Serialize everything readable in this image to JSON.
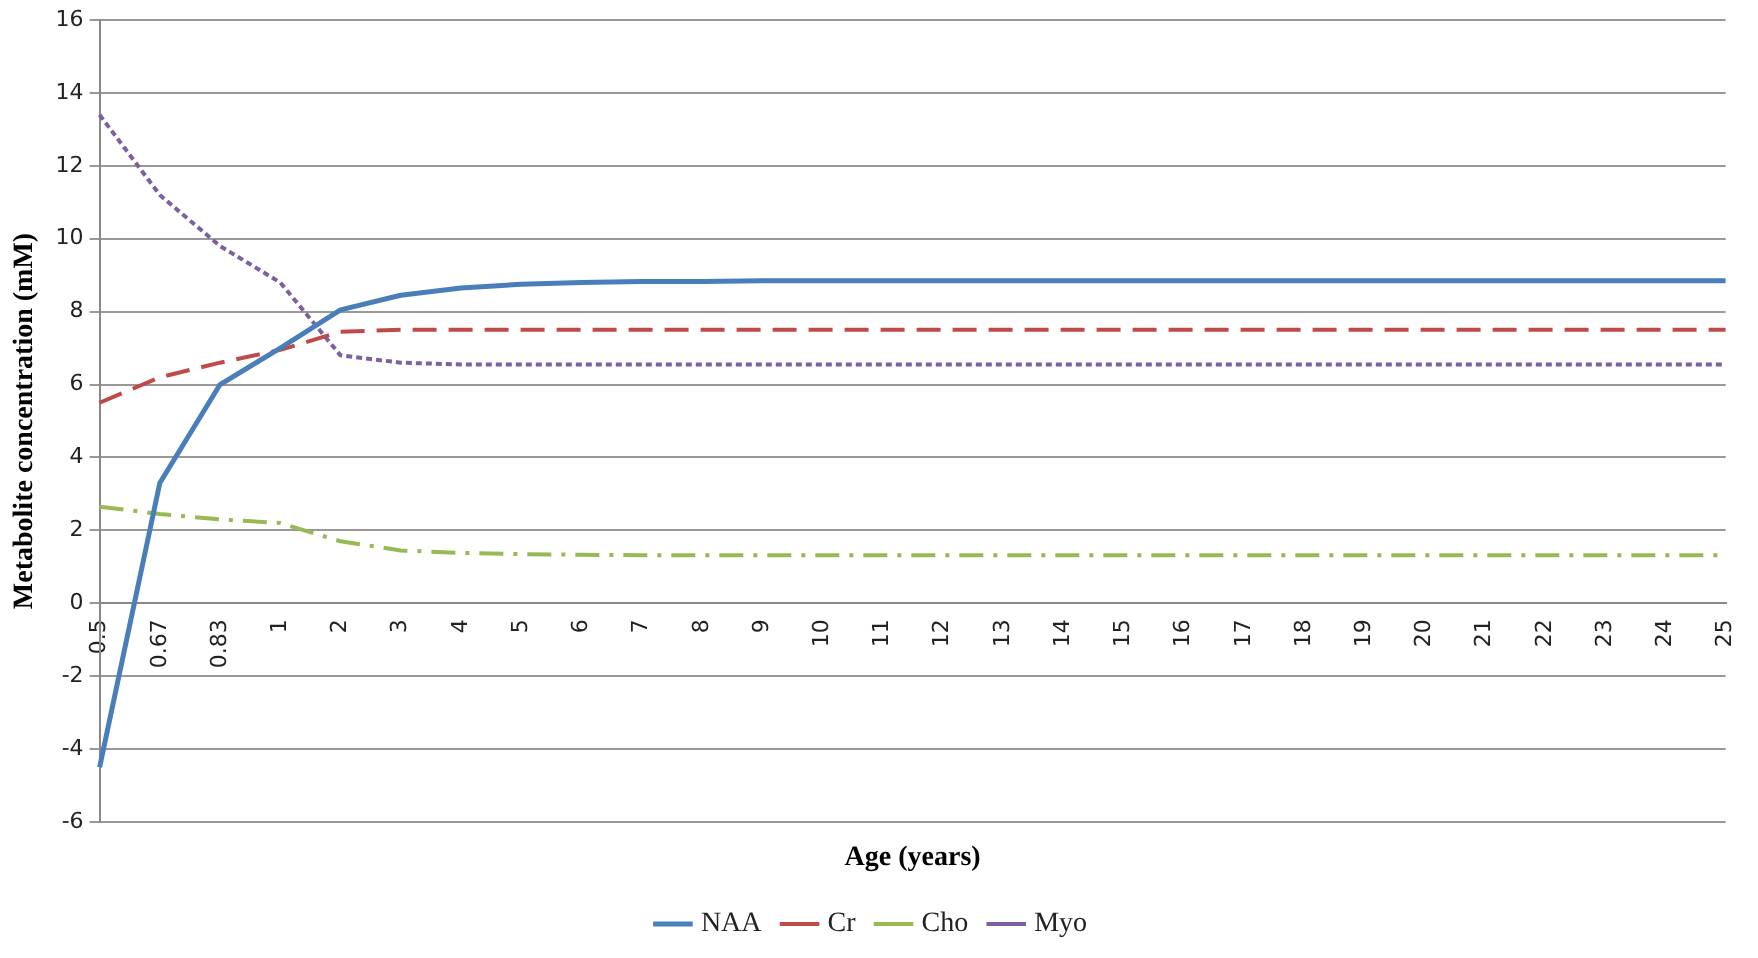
{
  "chart_data": {
    "type": "line",
    "xlabel": "Age (years)",
    "ylabel": "Metabolite concentration (mM)",
    "categories": [
      "0.5",
      "0.67",
      "0.83",
      "1",
      "2",
      "3",
      "4",
      "5",
      "6",
      "7",
      "8",
      "9",
      "10",
      "11",
      "12",
      "13",
      "14",
      "15",
      "16",
      "17",
      "18",
      "19",
      "20",
      "21",
      "22",
      "23",
      "24",
      "25"
    ],
    "series": [
      {
        "name": "NAA",
        "color": "#4a7ebb",
        "line_style": "solid",
        "values": [
          -4.5,
          3.3,
          6.0,
          7.0,
          8.05,
          8.45,
          8.65,
          8.75,
          8.8,
          8.83,
          8.83,
          8.85,
          8.85,
          8.85,
          8.85,
          8.85,
          8.85,
          8.85,
          8.85,
          8.85,
          8.85,
          8.85,
          8.85,
          8.85,
          8.85,
          8.85,
          8.85,
          8.85
        ]
      },
      {
        "name": "Cr",
        "color": "#be4b48",
        "line_style": "dashed",
        "values": [
          5.5,
          6.2,
          6.6,
          6.95,
          7.45,
          7.5,
          7.5,
          7.5,
          7.5,
          7.5,
          7.5,
          7.5,
          7.5,
          7.5,
          7.5,
          7.5,
          7.5,
          7.5,
          7.5,
          7.5,
          7.5,
          7.5,
          7.5,
          7.5,
          7.5,
          7.5,
          7.5,
          7.5
        ]
      },
      {
        "name": "Cho",
        "color": "#98b954",
        "line_style": "dashdot",
        "values": [
          2.65,
          2.45,
          2.3,
          2.2,
          1.7,
          1.45,
          1.38,
          1.35,
          1.33,
          1.32,
          1.32,
          1.32,
          1.32,
          1.32,
          1.32,
          1.32,
          1.32,
          1.32,
          1.32,
          1.32,
          1.32,
          1.32,
          1.32,
          1.32,
          1.32,
          1.32,
          1.32,
          1.32
        ]
      },
      {
        "name": "Myo",
        "color": "#7d60a0",
        "line_style": "dotted",
        "values": [
          13.4,
          11.2,
          9.8,
          8.8,
          6.8,
          6.6,
          6.55,
          6.55,
          6.55,
          6.55,
          6.55,
          6.55,
          6.55,
          6.55,
          6.55,
          6.55,
          6.55,
          6.55,
          6.55,
          6.55,
          6.55,
          6.55,
          6.55,
          6.55,
          6.55,
          6.55,
          6.55,
          6.55
        ]
      }
    ],
    "ylim": [
      -6,
      16
    ],
    "yticks": [
      -6,
      -4,
      -2,
      0,
      2,
      4,
      6,
      8,
      10,
      12,
      14,
      16
    ],
    "grid": "y",
    "legend": "bottom",
    "marker": "none"
  }
}
